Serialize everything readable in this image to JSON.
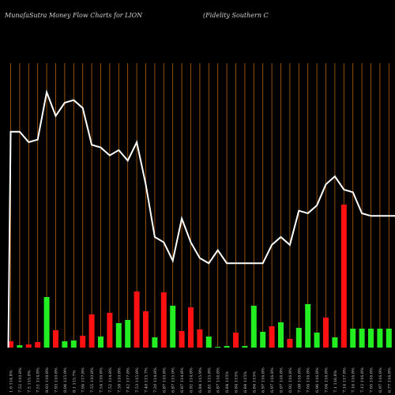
{
  "header": {
    "title": "MunafaSutra  Money Flow  Charts for LION",
    "company": "(Fidelity Southern  C"
  },
  "colors": {
    "background": "#000000",
    "gridline": "#b5620f",
    "price_line": "#ffffff",
    "positive_bar": "#22ee22",
    "negative_bar": "#ff1111",
    "label_text": "#cfcfcf"
  },
  "chart_data": {
    "type": "bar",
    "title": "MunafaSutra  Money Flow  Charts for LION",
    "subtitle": "(Fidelity Southern  C",
    "grid": true,
    "x": [
      "Fri 21 Feb 2025",
      "Thu 20 Feb 2025",
      "Wed 19 Feb 2025",
      "Tue 18 Feb 2025",
      "Fri 14 Feb 2025",
      "Thu 13 Feb 2025",
      "Wed 12 Feb 2025",
      "Tue 11 Feb 2025",
      "Mon 10 Feb 2025",
      "Fri 07 Feb 2025",
      "Thu 06 Feb 2025",
      "Wed 05 Feb 2025",
      "Tue 04 Feb 2025",
      "Mon 03 Feb 2025",
      "Fri 31 Jan 2025",
      "Thu 30 Jan 2025",
      "Wed 29 Jan 2025",
      "Tue 28 Jan 2025",
      "Mon 27 Jan 2025",
      "Fri 24 Jan 2025",
      "Thu 23 Jan 2025",
      "Wed 22 Jan 2025",
      "Tue 21 Jan 2025",
      "Fri 17 Jan 2025",
      "Thu 16 Jan 2025",
      "Wed 15 Jan 2025",
      "Tue 14 Jan 2025",
      "Mon 13 Jan 2025",
      "Fri 10 Jan 2025",
      "Thu 09 Jan 2025",
      "Wed 08 Jan 2025",
      "Tue 07 Jan 2025",
      "Mon 06 Jan 2025",
      "Fri 03 Jan 2025",
      "Thu 02 Jan 2025",
      "Tue 31 Dec 2024",
      "Mon 30 Dec 2024",
      "Fri 27 Dec 2024",
      "Thu 26 Dec 2024",
      "Tue 24 Dec 2024",
      "Mon 23 Dec 2024",
      "Fri 20 Dec 2024",
      "Thu 19 Dec 2024",
      "Wed 18 Dec 2024"
    ],
    "tick_labels": [
      "1.0 114.8%",
      "7.52 110.8%",
      "7.5 115.9%",
      "7.51 114.8%",
      "8.03 118.8%",
      "7.93 110.8%",
      "8.06 115.9%",
      "8.1 115.7%",
      "7.94 117.8%",
      "7.55 110.8%",
      "7.54 116.8%",
      "7.52 114.8%",
      "7.58 110.8%",
      "7.42 117.8%",
      "7.53 115.8%",
      "7.40 115.7%",
      "7.20 114.8%",
      "6.87 110.8%",
      "6.87 115.9%",
      "6.87 114.8%",
      "6.92 114.8%",
      "6.84 115.9%",
      "6.81 115.8%",
      "6.87 116.8%",
      "6.84 115%",
      "6.84 115%",
      "6.84 115%",
      "6.84 115%",
      "6.97 116.8%",
      "6.97 116.8%",
      "6.97 116.8%",
      "6.92 116.8%",
      "7.08 116.8%",
      "7.04 116.8%",
      "6.96 116.8%",
      "7.04 116.8%",
      "7.1 116.8%",
      "7.14 117.8%",
      "7.16 116.8%",
      "7.12 116.8%",
      "7.05 116.8%",
      "6.97 116.8%",
      "6.77 116.8%",
      "6.79 116.8%"
    ],
    "series": [
      {
        "name": "",
        "type": "line",
        "values": [
          7.96,
          7.96,
          7.92,
          7.93,
          8.11,
          8.02,
          8.07,
          8.08,
          8.05,
          7.91,
          7.9,
          7.87,
          7.89,
          7.85,
          7.92,
          7.76,
          7.56,
          7.54,
          7.47,
          7.63,
          7.54,
          7.48,
          7.46,
          7.51,
          7.46,
          7.46,
          7.46,
          7.46,
          7.46,
          7.53,
          7.56,
          7.53,
          7.66,
          7.65,
          7.68,
          7.76,
          7.79,
          7.74,
          7.73,
          7.65,
          7.64,
          7.64,
          7.64,
          7.64
        ]
      },
      {
        "name": "",
        "type": "bar",
        "values": [
          8,
          3,
          4,
          7,
          64,
          22,
          8,
          9,
          15,
          42,
          14,
          44,
          31,
          35,
          71,
          46,
          13,
          70,
          53,
          21,
          51,
          23,
          14,
          1,
          2,
          19,
          2,
          53,
          20,
          27,
          32,
          11,
          25,
          55,
          19,
          38,
          13,
          181,
          24,
          24,
          24,
          24,
          24,
          24
        ],
        "direction": [
          "neg",
          "pos",
          "neg",
          "neg",
          "pos",
          "neg",
          "pos",
          "pos",
          "neg",
          "neg",
          "pos",
          "neg",
          "pos",
          "pos",
          "neg",
          "neg",
          "pos",
          "neg",
          "pos",
          "neg",
          "neg",
          "neg",
          "pos",
          "pos",
          "pos",
          "neg",
          "pos",
          "pos",
          "pos",
          "neg",
          "pos",
          "neg",
          "pos",
          "pos",
          "pos",
          "neg",
          "pos",
          "neg",
          "pos",
          "pos",
          "pos",
          "pos",
          "pos",
          "pos"
        ]
      }
    ],
    "ylim_price": [
      7.2,
      8.4
    ],
    "ylim_volume": [
      0,
      200
    ]
  }
}
